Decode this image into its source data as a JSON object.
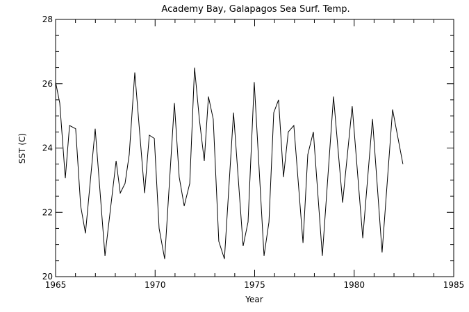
{
  "chart_data": {
    "type": "line",
    "title": "Academy Bay, Galapagos  Sea Surf. Temp.",
    "xlabel": "Year",
    "ylabel": "SST (C)",
    "xlim": [
      1965,
      1985
    ],
    "ylim": [
      20,
      28
    ],
    "xticks": [
      1965,
      1970,
      1975,
      1980,
      1985
    ],
    "yticks": [
      20,
      22,
      24,
      26,
      28
    ],
    "grid": false,
    "series": [
      {
        "name": "SST",
        "color": "#000000",
        "x": [
          1965.0,
          1965.21,
          1965.49,
          1965.7,
          1966.01,
          1966.26,
          1966.5,
          1966.99,
          1967.48,
          1968.04,
          1968.25,
          1968.49,
          1968.7,
          1968.98,
          1969.47,
          1969.71,
          1969.96,
          1970.2,
          1970.48,
          1970.97,
          1971.21,
          1971.46,
          1971.74,
          1971.98,
          1972.22,
          1972.47,
          1972.68,
          1972.92,
          1973.2,
          1973.48,
          1973.94,
          1974.42,
          1974.67,
          1974.98,
          1975.47,
          1975.72,
          1975.96,
          1976.2,
          1976.45,
          1976.69,
          1976.97,
          1977.43,
          1977.67,
          1977.95,
          1978.4,
          1978.96,
          1979.42,
          1979.9,
          1980.43,
          1980.92,
          1981.4,
          1981.93,
          1982.45
        ],
        "y": [
          26.05,
          25.4,
          23.06,
          24.7,
          24.6,
          22.2,
          21.35,
          24.6,
          20.65,
          23.6,
          22.6,
          22.9,
          23.8,
          26.35,
          22.6,
          24.4,
          24.3,
          21.5,
          20.55,
          25.4,
          23.1,
          22.2,
          22.9,
          26.5,
          24.9,
          23.6,
          25.6,
          24.9,
          21.1,
          20.55,
          25.1,
          20.95,
          21.7,
          26.05,
          20.65,
          21.7,
          25.1,
          25.5,
          23.1,
          24.5,
          24.7,
          21.05,
          23.8,
          24.5,
          20.65,
          25.6,
          22.3,
          25.3,
          21.2,
          24.9,
          20.75,
          25.2,
          23.5
        ]
      }
    ]
  }
}
